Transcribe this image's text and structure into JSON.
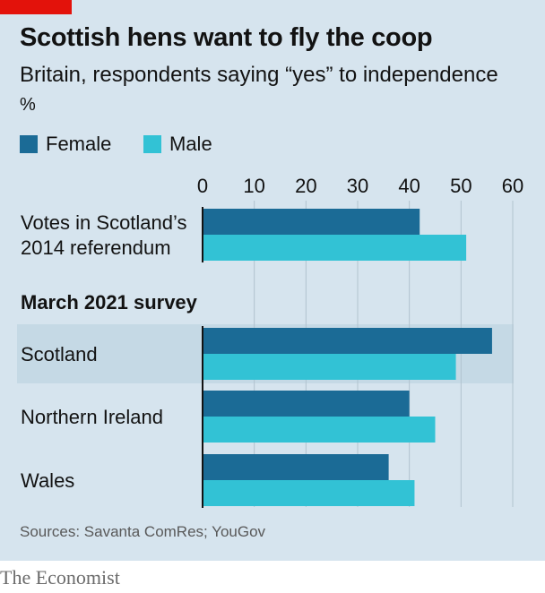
{
  "header": {
    "title": "Scottish hens want to fly the coop",
    "subtitle": "Britain, respondents saying “yes” to independence",
    "unit": "%"
  },
  "legend": {
    "items": [
      {
        "label": "Female",
        "color": "#1b6b96"
      },
      {
        "label": "Male",
        "color": "#32c2d5"
      }
    ]
  },
  "colors": {
    "accent": "#e3120b",
    "panel": "#d6e4ee",
    "highlight": "#c5d9e5",
    "gridline": "#b1c3cf",
    "axis": "#121212"
  },
  "chart_data": {
    "type": "bar",
    "orientation": "horizontal",
    "xlim": [
      0,
      60
    ],
    "x_ticks": [
      "0",
      "10",
      "20",
      "30",
      "40",
      "50",
      "60"
    ],
    "group_heading": "March 2021 survey",
    "categories": [
      {
        "label_lines": [
          "Votes in Scotland’s",
          "2014 referendum"
        ],
        "highlight": false
      },
      {
        "label_lines": [
          "Scotland"
        ],
        "highlight": true
      },
      {
        "label_lines": [
          "Northern Ireland"
        ],
        "highlight": false
      },
      {
        "label_lines": [
          "Wales"
        ],
        "highlight": false
      }
    ],
    "series": [
      {
        "name": "Female",
        "values": [
          42,
          56,
          40,
          36
        ]
      },
      {
        "name": "Male",
        "values": [
          51,
          49,
          45,
          41
        ]
      }
    ]
  },
  "footer": {
    "source": "Sources: Savanta ComRes; YouGov",
    "brand": "The Economist"
  }
}
